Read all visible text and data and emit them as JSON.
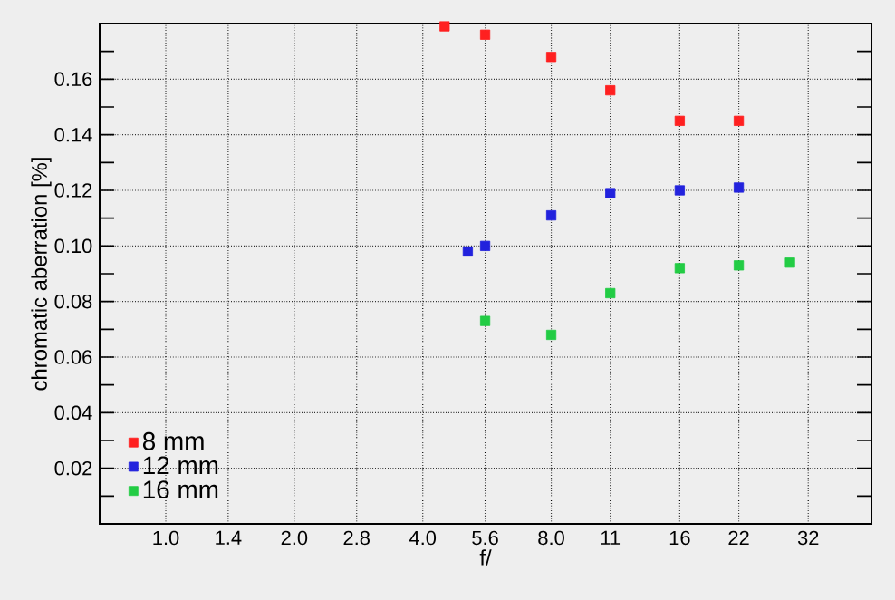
{
  "chart_data": {
    "type": "scatter",
    "xlabel": "f/",
    "ylabel": "chromatic aberration [%]",
    "log": "x",
    "xlim": [
      0.7,
      45
    ],
    "ylim": [
      0,
      0.18
    ],
    "xticks": [
      {
        "value": 1.0,
        "label": "1.0"
      },
      1.4,
      {
        "value": 2.0,
        "label": "2.0"
      },
      2.8,
      {
        "value": 4.0,
        "label": "4.0"
      },
      5.6,
      {
        "value": 8.0,
        "label": "8.0"
      },
      11,
      16,
      22,
      32
    ],
    "yticks": [
      {
        "value": 0.01,
        "label": null
      },
      0.02,
      {
        "value": 0.03,
        "label": null
      },
      0.04,
      {
        "value": 0.05,
        "label": null
      },
      0.06,
      {
        "value": 0.07,
        "label": null
      },
      0.08,
      {
        "value": 0.09,
        "label": null
      },
      {
        "value": 0.1,
        "label": "0.10"
      },
      {
        "value": 0.11,
        "label": null
      },
      0.12,
      {
        "value": 0.13,
        "label": null
      },
      0.14,
      {
        "value": 0.15,
        "label": null
      },
      0.16,
      {
        "value": 0.17,
        "label": null
      }
    ],
    "grid": true,
    "legend": "bottom left",
    "marker": "square",
    "series": [
      {
        "name": "8 mm",
        "color": "#ff2020",
        "x": [
          4.5,
          5.6,
          8.0,
          11,
          16,
          22
        ],
        "values": [
          0.179,
          0.176,
          0.168,
          0.156,
          0.145,
          0.145
        ]
      },
      {
        "name": "12 mm",
        "color": "#2222dd",
        "x": [
          5.1,
          5.6,
          8.0,
          11,
          16,
          22
        ],
        "values": [
          0.098,
          0.1,
          0.111,
          0.119,
          0.12,
          0.121
        ]
      },
      {
        "name": "16 mm",
        "color": "#22cc44",
        "x": [
          5.6,
          8.0,
          11,
          16,
          22,
          29
        ],
        "values": [
          0.073,
          0.068,
          0.083,
          0.092,
          0.093,
          0.094
        ]
      }
    ]
  }
}
